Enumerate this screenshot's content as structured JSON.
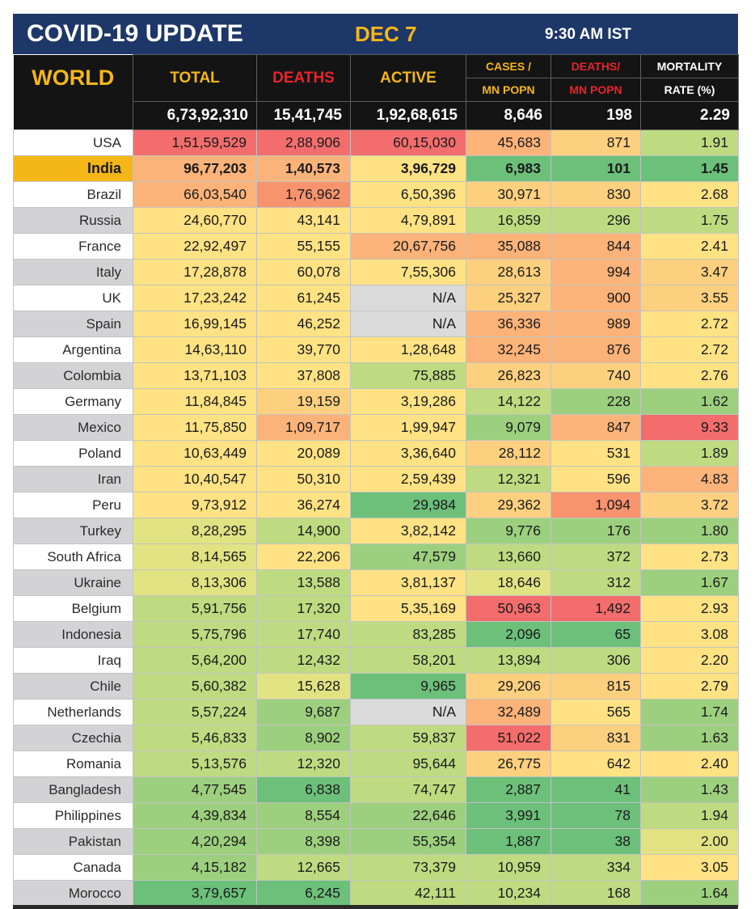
{
  "header": {
    "title": "COVID-19 UPDATE",
    "date": "DEC 7",
    "time": "9:30 AM IST"
  },
  "table": {
    "world_label": "WORLD",
    "columns": {
      "total": "TOTAL",
      "deaths": "DEATHS",
      "active": "ACTIVE",
      "cases_mn_1": "CASES /",
      "cases_mn_2": "MN POPN",
      "deaths_mn_1": "DEATHS/",
      "deaths_mn_2": "MN POPN",
      "mortality_1": "MORTALITY",
      "mortality_2": "RATE (%)"
    },
    "world_totals": {
      "total": "6,73,92,310",
      "deaths": "15,41,745",
      "active": "1,92,68,615",
      "cases_mn": "8,646",
      "deaths_mn": "198",
      "mortality": "2.29"
    },
    "rows": [
      {
        "country": "USA",
        "total": "1,51,59,529",
        "deaths": "2,88,906",
        "active": "60,15,030",
        "cases_mn": "45,683",
        "deaths_mn": "871",
        "mortality": "1.91"
      },
      {
        "country": "India",
        "total": "96,77,203",
        "deaths": "1,40,573",
        "active": "3,96,729",
        "cases_mn": "6,983",
        "deaths_mn": "101",
        "mortality": "1.45"
      },
      {
        "country": "Brazil",
        "total": "66,03,540",
        "deaths": "1,76,962",
        "active": "6,50,396",
        "cases_mn": "30,971",
        "deaths_mn": "830",
        "mortality": "2.68"
      },
      {
        "country": "Russia",
        "total": "24,60,770",
        "deaths": "43,141",
        "active": "4,79,891",
        "cases_mn": "16,859",
        "deaths_mn": "296",
        "mortality": "1.75"
      },
      {
        "country": "France",
        "total": "22,92,497",
        "deaths": "55,155",
        "active": "20,67,756",
        "cases_mn": "35,088",
        "deaths_mn": "844",
        "mortality": "2.41"
      },
      {
        "country": "Italy",
        "total": "17,28,878",
        "deaths": "60,078",
        "active": "7,55,306",
        "cases_mn": "28,613",
        "deaths_mn": "994",
        "mortality": "3.47"
      },
      {
        "country": "UK",
        "total": "17,23,242",
        "deaths": "61,245",
        "active": "N/A",
        "cases_mn": "25,327",
        "deaths_mn": "900",
        "mortality": "3.55"
      },
      {
        "country": "Spain",
        "total": "16,99,145",
        "deaths": "46,252",
        "active": "N/A",
        "cases_mn": "36,336",
        "deaths_mn": "989",
        "mortality": "2.72"
      },
      {
        "country": "Argentina",
        "total": "14,63,110",
        "deaths": "39,770",
        "active": "1,28,648",
        "cases_mn": "32,245",
        "deaths_mn": "876",
        "mortality": "2.72"
      },
      {
        "country": "Colombia",
        "total": "13,71,103",
        "deaths": "37,808",
        "active": "75,885",
        "cases_mn": "26,823",
        "deaths_mn": "740",
        "mortality": "2.76"
      },
      {
        "country": "Germany",
        "total": "11,84,845",
        "deaths": "19,159",
        "active": "3,19,286",
        "cases_mn": "14,122",
        "deaths_mn": "228",
        "mortality": "1.62"
      },
      {
        "country": "Mexico",
        "total": "11,75,850",
        "deaths": "1,09,717",
        "active": "1,99,947",
        "cases_mn": "9,079",
        "deaths_mn": "847",
        "mortality": "9.33"
      },
      {
        "country": "Poland",
        "total": "10,63,449",
        "deaths": "20,089",
        "active": "3,36,640",
        "cases_mn": "28,112",
        "deaths_mn": "531",
        "mortality": "1.89"
      },
      {
        "country": "Iran",
        "total": "10,40,547",
        "deaths": "50,310",
        "active": "2,59,439",
        "cases_mn": "12,321",
        "deaths_mn": "596",
        "mortality": "4.83"
      },
      {
        "country": "Peru",
        "total": "9,73,912",
        "deaths": "36,274",
        "active": "29,984",
        "cases_mn": "29,362",
        "deaths_mn": "1,094",
        "mortality": "3.72"
      },
      {
        "country": "Turkey",
        "total": "8,28,295",
        "deaths": "14,900",
        "active": "3,82,142",
        "cases_mn": "9,776",
        "deaths_mn": "176",
        "mortality": "1.80"
      },
      {
        "country": "South Africa",
        "total": "8,14,565",
        "deaths": "22,206",
        "active": "47,579",
        "cases_mn": "13,660",
        "deaths_mn": "372",
        "mortality": "2.73"
      },
      {
        "country": "Ukraine",
        "total": "8,13,306",
        "deaths": "13,588",
        "active": "3,81,137",
        "cases_mn": "18,646",
        "deaths_mn": "312",
        "mortality": "1.67"
      },
      {
        "country": "Belgium",
        "total": "5,91,756",
        "deaths": "17,320",
        "active": "5,35,169",
        "cases_mn": "50,963",
        "deaths_mn": "1,492",
        "mortality": "2.93"
      },
      {
        "country": "Indonesia",
        "total": "5,75,796",
        "deaths": "17,740",
        "active": "83,285",
        "cases_mn": "2,096",
        "deaths_mn": "65",
        "mortality": "3.08"
      },
      {
        "country": "Iraq",
        "total": "5,64,200",
        "deaths": "12,432",
        "active": "58,201",
        "cases_mn": "13,894",
        "deaths_mn": "306",
        "mortality": "2.20"
      },
      {
        "country": "Chile",
        "total": "5,60,382",
        "deaths": "15,628",
        "active": "9,965",
        "cases_mn": "29,206",
        "deaths_mn": "815",
        "mortality": "2.79"
      },
      {
        "country": "Netherlands",
        "total": "5,57,224",
        "deaths": "9,687",
        "active": "N/A",
        "cases_mn": "32,489",
        "deaths_mn": "565",
        "mortality": "1.74"
      },
      {
        "country": "Czechia",
        "total": "5,46,833",
        "deaths": "8,902",
        "active": "59,837",
        "cases_mn": "51,022",
        "deaths_mn": "831",
        "mortality": "1.63"
      },
      {
        "country": "Romania",
        "total": "5,13,576",
        "deaths": "12,320",
        "active": "95,644",
        "cases_mn": "26,775",
        "deaths_mn": "642",
        "mortality": "2.40"
      },
      {
        "country": "Bangladesh",
        "total": "4,77,545",
        "deaths": "6,838",
        "active": "74,747",
        "cases_mn": "2,887",
        "deaths_mn": "41",
        "mortality": "1.43"
      },
      {
        "country": "Philippines",
        "total": "4,39,834",
        "deaths": "8,554",
        "active": "22,646",
        "cases_mn": "3,991",
        "deaths_mn": "78",
        "mortality": "1.94"
      },
      {
        "country": "Pakistan",
        "total": "4,20,294",
        "deaths": "8,398",
        "active": "55,354",
        "cases_mn": "1,887",
        "deaths_mn": "38",
        "mortality": "2.00"
      },
      {
        "country": "Canada",
        "total": "4,15,182",
        "deaths": "12,665",
        "active": "73,379",
        "cases_mn": "10,959",
        "deaths_mn": "334",
        "mortality": "3.05"
      },
      {
        "country": "Morocco",
        "total": "3,79,657",
        "deaths": "6,245",
        "active": "42,111",
        "cases_mn": "10,234",
        "deaths_mn": "168",
        "mortality": "1.64"
      }
    ],
    "heat_colors": {
      "red": "#f36d6d",
      "orange_red": "#f7936d",
      "orange": "#fbb379",
      "light_orange": "#fdd07f",
      "yellow": "#ffe283",
      "yellow_green": "#e1e383",
      "light_green": "#bedb81",
      "green": "#9dd07e",
      "dark_green": "#6cc07a",
      "na_gray": "#dadada",
      "india_highlight": "#f5b617",
      "banner_navy": "#1d3769"
    }
  }
}
